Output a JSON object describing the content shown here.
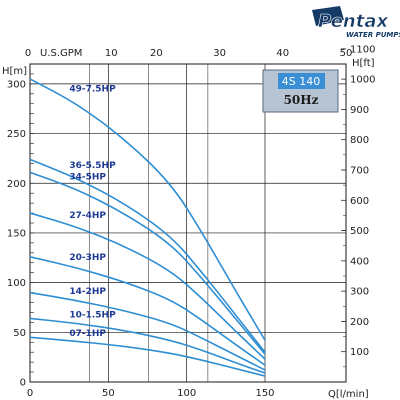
{
  "brand": {
    "logo_text": "Pentax",
    "tagline": "WATER PUMPS"
  },
  "model_box": {
    "model": "4S 140",
    "frequency": "50Hz"
  },
  "colors": {
    "curve": "#2e8ed3",
    "grid": "#1a1a1a",
    "label": "#1f3a93",
    "box_bg": "#b6c3d3",
    "box_badge": "#3a8fd4",
    "logo": "#153a66"
  },
  "chart_data": {
    "type": "line",
    "title": "",
    "xlabel": "Q[l/min]",
    "ylabel": "H[m]",
    "xlim": [
      0,
      150
    ],
    "ylim": [
      0,
      320
    ],
    "x_ticks": [
      0,
      50,
      100,
      150
    ],
    "y_ticks": [
      0,
      50,
      100,
      150,
      200,
      250,
      300
    ],
    "y_minor_step": 10,
    "grid": true,
    "secondary_x": {
      "label": "U.S.GPM",
      "ticks": [
        0,
        10,
        20,
        30,
        40,
        50
      ],
      "max": 50
    },
    "secondary_y": {
      "label": "H[ft]",
      "ticks": [
        100,
        200,
        300,
        400,
        500,
        600,
        700,
        800,
        900,
        1000,
        1100
      ],
      "max": 1100
    },
    "series": [
      {
        "name": "49-7.5HP",
        "x": [
          0,
          30,
          60,
          90,
          110,
          130,
          150
        ],
        "y": [
          305,
          280,
          245,
          200,
          150,
          95,
          42
        ]
      },
      {
        "name": "36-5.5HP",
        "x": [
          0,
          30,
          60,
          90,
          110,
          130,
          150
        ],
        "y": [
          224,
          205,
          180,
          147,
          110,
          70,
          30
        ]
      },
      {
        "name": "34-5HP",
        "x": [
          0,
          30,
          60,
          90,
          110,
          130,
          150
        ],
        "y": [
          211,
          194,
          170,
          139,
          104,
          66,
          28
        ]
      },
      {
        "name": "27-4HP",
        "x": [
          0,
          30,
          60,
          90,
          110,
          130,
          150
        ],
        "y": [
          170,
          156,
          137,
          112,
          84,
          53,
          23
        ]
      },
      {
        "name": "20-3HP",
        "x": [
          0,
          30,
          60,
          90,
          110,
          130,
          150
        ],
        "y": [
          126,
          115,
          101,
          83,
          62,
          39,
          17
        ]
      },
      {
        "name": "14-2HP",
        "x": [
          0,
          30,
          60,
          90,
          110,
          130,
          150
        ],
        "y": [
          90,
          82,
          72,
          59,
          44,
          28,
          12
        ]
      },
      {
        "name": "10-1.5HP",
        "x": [
          0,
          30,
          60,
          90,
          110,
          130,
          150
        ],
        "y": [
          64,
          59,
          52,
          42,
          32,
          20,
          9
        ]
      },
      {
        "name": "07-1HP",
        "x": [
          0,
          30,
          60,
          90,
          110,
          130,
          150
        ],
        "y": [
          45,
          41,
          36,
          29,
          22,
          14,
          6
        ]
      }
    ]
  }
}
